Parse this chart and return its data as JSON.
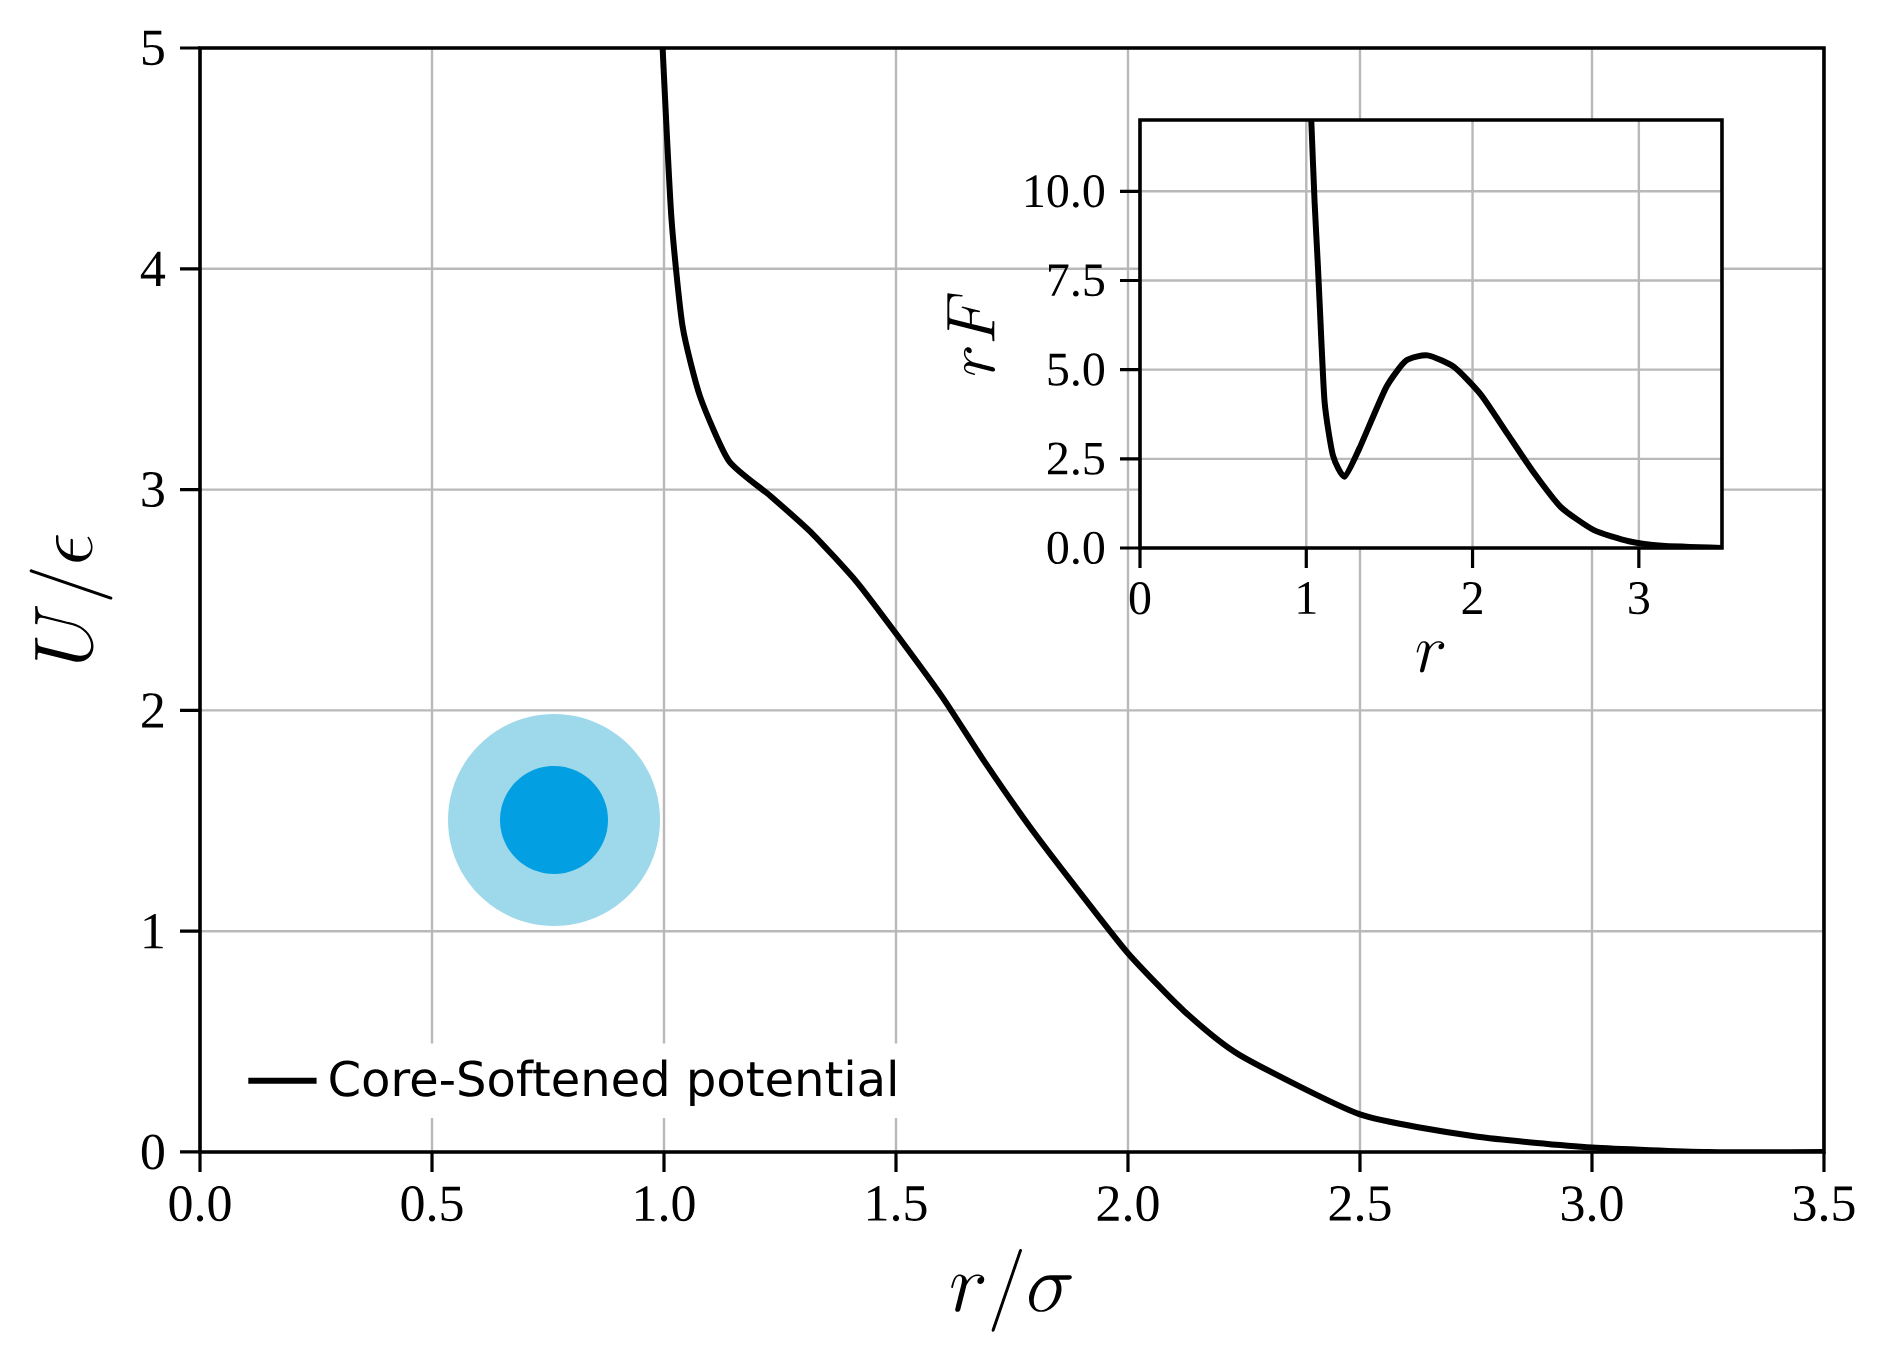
{
  "chart_data": [
    {
      "type": "line",
      "xlabel": "r/\\sigma",
      "ylabel": "U/\\epsilon",
      "x": [
        0.997,
        1.016,
        1.04,
        1.078,
        1.14,
        1.23,
        1.32,
        1.416,
        1.51,
        1.6,
        1.69,
        1.786,
        1.88,
        2.0,
        2.12,
        2.24,
        2.5,
        2.75,
        3.0,
        3.25,
        3.5
      ],
      "series": [
        {
          "name": "Core-Softened potential",
          "color": "#000000",
          "values": [
            5.0,
            4.23,
            3.74,
            3.42,
            3.13,
            2.97,
            2.8,
            2.58,
            2.32,
            2.06,
            1.77,
            1.48,
            1.22,
            0.9,
            0.64,
            0.44,
            0.17,
            0.07,
            0.02,
            0.0,
            0.0
          ]
        }
      ],
      "xlim": [
        0,
        3.5
      ],
      "ylim": [
        0,
        5
      ],
      "xticks": [
        {
          "value": 0,
          "label": "0.0"
        },
        0.5,
        {
          "value": 1,
          "label": "1.0"
        },
        1.5,
        {
          "value": 2,
          "label": "2.0"
        },
        2.5,
        {
          "value": 3,
          "label": "3.0"
        },
        3.5
      ],
      "yticks": [
        0,
        1,
        2,
        3,
        4,
        5
      ],
      "grid": true,
      "legend": "bottom left"
    },
    {
      "type": "line",
      "xlabel": "r",
      "ylabel": "rF",
      "x": [
        1.03,
        1.05,
        1.07,
        1.08,
        1.11,
        1.16,
        1.23,
        1.32,
        1.48,
        1.6,
        1.73,
        1.89,
        2.05,
        2.21,
        2.37,
        2.53,
        2.73,
        2.94,
        3.14,
        3.5
      ],
      "series": [
        {
          "color": "#000000",
          "values": [
            12,
            9.7,
            7.9,
            6.9,
            4.1,
            2.6,
            2.0,
            2.8,
            4.5,
            5.25,
            5.4,
            5.07,
            4.3,
            3.2,
            2.1,
            1.15,
            0.5,
            0.19,
            0.06,
            0.0
          ]
        }
      ],
      "xlim": [
        0,
        3.5
      ],
      "ylim": [
        0,
        12
      ],
      "xticks": [
        0,
        1,
        2,
        3
      ],
      "yticks": [
        {
          "value": 0,
          "label": "0.0"
        },
        2.5,
        {
          "value": 5,
          "label": "5.0"
        },
        7.5,
        {
          "value": 10,
          "label": "10.0"
        }
      ],
      "grid": true
    }
  ]
}
